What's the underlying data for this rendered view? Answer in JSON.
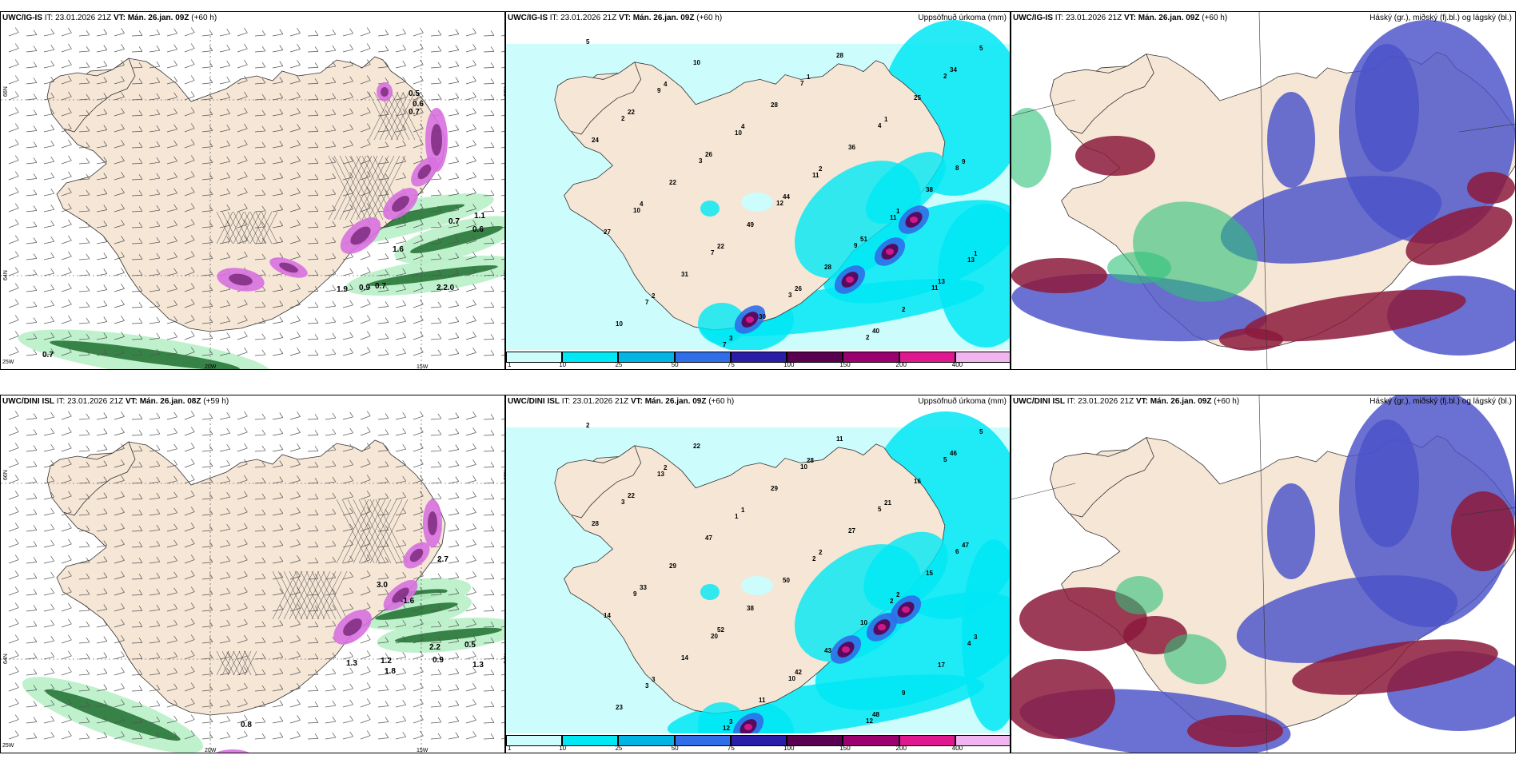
{
  "colors": {
    "land": "#f5e6d6",
    "sea_light": "#ccfcfc",
    "cyan": "#00e8f4",
    "wind_green": "#b8f0c8",
    "wind_dark": "#1e6e2e",
    "magenta": "#d870e0",
    "low_cloud_blue": "#4a52c8",
    "high_cloud_red": "#8c1a3c",
    "mid_cloud_green": "#2ec27a"
  },
  "panels": [
    {
      "row": 0,
      "col": 0,
      "kind": "wind",
      "model": "UWC/IG-IS",
      "it": "IT: 23.01.2026 21Z",
      "vt": "VT: Mán. 26.jan. 09Z",
      "lead": "(+60 h)",
      "right_title": "",
      "lat_labels": [
        "66N",
        "64N",
        "66N",
        "64N"
      ],
      "lon_labels": [
        "20W",
        "15W",
        "25W"
      ],
      "values": [
        "0.5",
        "0.6",
        "0.7",
        "1.1",
        "0.6",
        "0.7",
        "1.9",
        "0.9",
        "0.7",
        "2.2.0",
        "0.7",
        "1.6"
      ]
    },
    {
      "row": 0,
      "col": 1,
      "kind": "precip",
      "model": "UWC/IG-IS",
      "it": "IT: 23.01.2026 21Z",
      "vt": "VT: Mán. 26.jan. 09Z",
      "lead": "(+60 h)",
      "right_title": "Uppsöfnuð úrkoma (mm)",
      "values": [
        "5",
        "4",
        "4",
        "2",
        "1",
        "1",
        "2",
        "3",
        "1",
        "1",
        "9",
        "4",
        "22",
        "26",
        "40",
        "34",
        "22",
        "26",
        "44",
        "51",
        "13",
        "10",
        "10",
        "28",
        "36",
        "38",
        "27",
        "31",
        "30",
        "28",
        "25",
        "24",
        "22",
        "49",
        "28",
        "2",
        "5",
        "9",
        "10",
        "11",
        "11",
        "13",
        "7",
        "7",
        "7",
        "4",
        "8",
        "10",
        "7",
        "3",
        "2",
        "2",
        "2",
        "3",
        "12",
        "9",
        "11"
      ]
    },
    {
      "row": 0,
      "col": 2,
      "kind": "cloud",
      "model": "UWC/IG-IS",
      "it": "IT: 23.01.2026 21Z",
      "vt": "VT: Mán. 26.jan. 09Z",
      "lead": "(+60 h)",
      "right_title": "Háský (gr.), miðský (fj.bl.) og lágský (bl.)"
    },
    {
      "row": 1,
      "col": 0,
      "kind": "wind",
      "model": "UWC/DINI ISL",
      "it": "IT: 23.01.2026 21Z",
      "vt": "VT: Mán. 26.jan. 08Z",
      "lead": "(+59 h)",
      "right_title": "",
      "lat_labels": [
        "66N",
        "64N",
        "66N",
        "64N"
      ],
      "lon_labels": [
        "20W",
        "15W",
        "25W"
      ],
      "values": [
        "-1.6",
        "3.0",
        "1.3",
        "1.2",
        "2.2",
        "0.5",
        "1.8",
        "0.9",
        "1.3",
        "2.7",
        "0.8"
      ]
    },
    {
      "row": 1,
      "col": 1,
      "kind": "precip",
      "model": "UWC/DINI ISL",
      "it": "IT: 23.01.2026 21Z",
      "vt": "VT: Mán. 26.jan. 09Z",
      "lead": "(+60 h)",
      "right_title": "Uppsöfnuð úrkoma (mm)",
      "values": [
        "2",
        "2",
        "1",
        "2",
        "2",
        "3",
        "3",
        "3",
        "28",
        "21",
        "47",
        "33",
        "52",
        "42",
        "48",
        "46",
        "22",
        "47",
        "50",
        "10",
        "17",
        "23",
        "22",
        "29",
        "27",
        "15",
        "14",
        "14",
        "11",
        "11",
        "16",
        "28",
        "29",
        "38",
        "43",
        "9",
        "5",
        "13",
        "1",
        "2",
        "2",
        "4",
        "3",
        "12",
        "10",
        "5",
        "6",
        "9",
        "20",
        "10",
        "12",
        "5",
        "3"
      ]
    },
    {
      "row": 1,
      "col": 2,
      "kind": "cloud",
      "model": "UWC/DINI ISL",
      "it": "IT: 23.01.2026 21Z",
      "vt": "VT: Mán. 26.jan. 09Z",
      "lead": "(+60 h)",
      "right_title": "Háský (gr.), miðský (fj.bl.) og lágský (bl.)"
    }
  ],
  "colorbar": {
    "ticks": [
      "1",
      "10",
      "25",
      "50",
      "75",
      "100",
      "150",
      "200",
      "400"
    ],
    "colors": [
      "#ccfcfc",
      "#00e8f4",
      "#00b4e4",
      "#2f6ee8",
      "#2a1ea8",
      "#5a0050",
      "#9a0070",
      "#e01890",
      "#f0b4f0"
    ]
  }
}
